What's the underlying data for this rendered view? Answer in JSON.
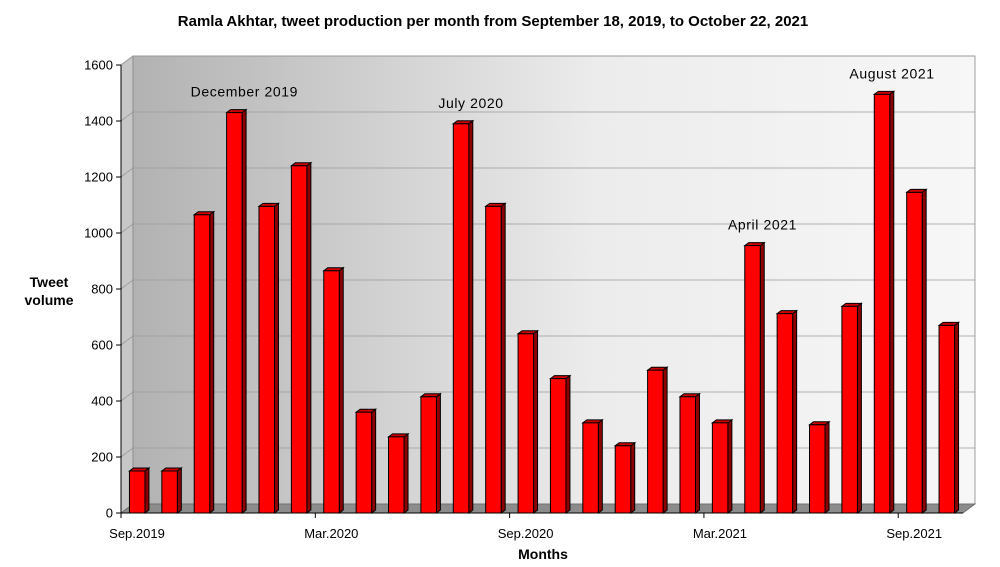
{
  "chart_data": {
    "type": "bar",
    "title": "Ramla Akhtar, tweet production per month from September 18, 2019, to October 22, 2021",
    "xlabel": "Months",
    "ylabel": [
      "Tweet",
      "volume"
    ],
    "ylim": [
      0,
      1600
    ],
    "yticks": [
      0,
      200,
      400,
      600,
      800,
      1000,
      1200,
      1400,
      1600
    ],
    "grid": true,
    "x_tick_labels": [
      {
        "label": "Sep.2019",
        "index": 0
      },
      {
        "label": "Mar.2020",
        "index": 6
      },
      {
        "label": "Sep.2020",
        "index": 12
      },
      {
        "label": "Mar.2021",
        "index": 18
      },
      {
        "label": "Sep.2021",
        "index": 24
      }
    ],
    "categories": [
      "Sep 2019",
      "Oct 2019",
      "Nov 2019",
      "Dec 2019",
      "Jan 2020",
      "Feb 2020",
      "Mar 2020",
      "Apr 2020",
      "May 2020",
      "Jun 2020",
      "Jul 2020",
      "Aug 2020",
      "Sep 2020",
      "Oct 2020",
      "Nov 2020",
      "Dec 2020",
      "Jan 2021",
      "Feb 2021",
      "Mar 2021",
      "Apr 2021",
      "May 2021",
      "Jun 2021",
      "Jul 2021",
      "Aug 2021",
      "Sep 2021",
      "Oct 2021"
    ],
    "values": [
      150,
      150,
      1065,
      1430,
      1095,
      1240,
      865,
      360,
      272,
      415,
      1390,
      1095,
      640,
      480,
      322,
      240,
      510,
      415,
      322,
      955,
      712,
      315,
      738,
      1495,
      1145,
      670
    ],
    "annotations": [
      {
        "text": "December 2019",
        "index": 3
      },
      {
        "text": "July 2020",
        "index": 10
      },
      {
        "text": "April 2021",
        "index": 19
      },
      {
        "text": "August 2021",
        "index": 23
      }
    ],
    "colors": {
      "bar": "#ff0000",
      "bar_side": "#8b0000",
      "bar_top": "#cc0000",
      "bar_outline": "#000000"
    }
  }
}
